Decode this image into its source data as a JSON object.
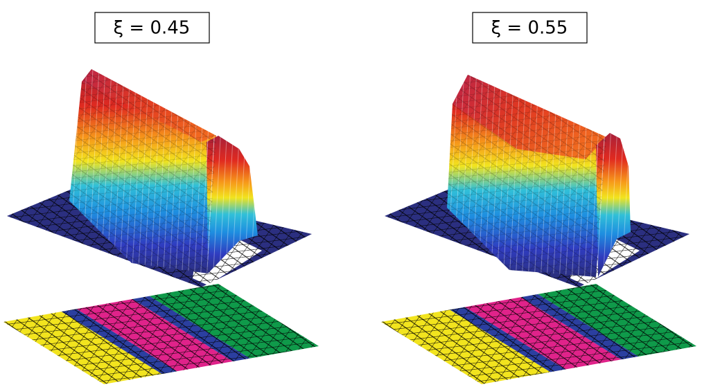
{
  "panels": [
    {
      "label": "ξ = 0.45"
    },
    {
      "label": "ξ = 0.55"
    }
  ]
}
